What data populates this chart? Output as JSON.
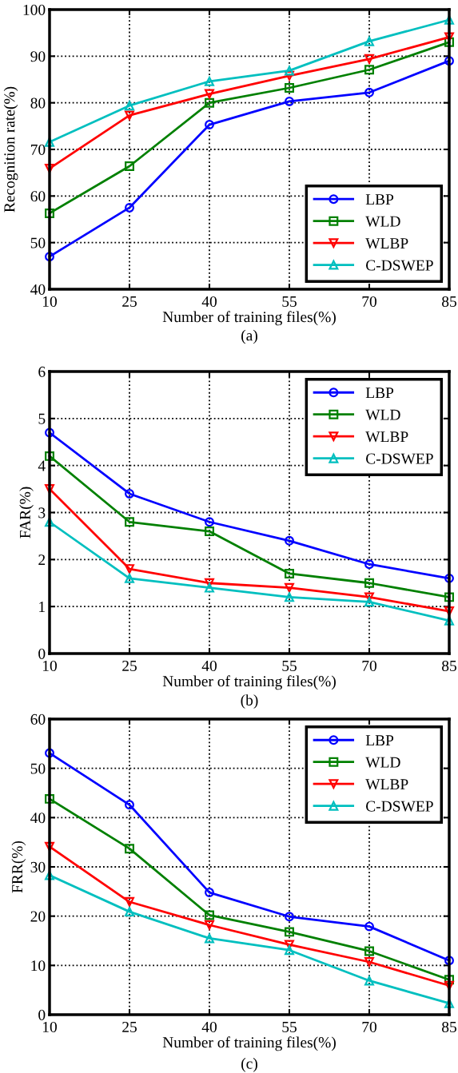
{
  "chart_data": [
    {
      "type": "line",
      "xlabel": "Number of training files(%)",
      "ylabel": "Recognition rate(%)",
      "annotations": [
        "(a)"
      ],
      "x": [
        10,
        25,
        40,
        55,
        70,
        85
      ],
      "xlim": [
        10,
        85
      ],
      "xticks": [
        10,
        25,
        40,
        55,
        70,
        85
      ],
      "ylim": [
        40,
        100
      ],
      "yticks": [
        40,
        50,
        60,
        70,
        80,
        90,
        100
      ],
      "grid": true,
      "legend": "bottom right",
      "line_style": "solid",
      "series": [
        {
          "name": "LBP",
          "color": "#0000ff",
          "marker": "circle",
          "values": [
            47,
            57.5,
            75.3,
            80.3,
            82.2,
            89
          ]
        },
        {
          "name": "WLD",
          "color": "#008000",
          "marker": "square",
          "values": [
            56.3,
            66.4,
            80,
            83.2,
            87.1,
            93
          ]
        },
        {
          "name": "WLBP",
          "color": "#ff0000",
          "marker": "triangle_down",
          "values": [
            65.9,
            77.3,
            81.9,
            85.8,
            89.4,
            94.1
          ]
        },
        {
          "name": "C-DSWEP",
          "color": "#00bfbf",
          "marker": "triangle",
          "values": [
            71.6,
            79.4,
            84.6,
            86.9,
            93.2,
            97.8
          ]
        }
      ]
    },
    {
      "type": "line",
      "xlabel": "Number of training files(%)",
      "ylabel": "FAR(%)",
      "annotations": [
        "(b)"
      ],
      "x": [
        10,
        25,
        40,
        55,
        70,
        85
      ],
      "xlim": [
        10,
        85
      ],
      "xticks": [
        10,
        25,
        40,
        55,
        70,
        85
      ],
      "ylim": [
        0,
        6
      ],
      "yticks": [
        0,
        1,
        2,
        3,
        4,
        5,
        6
      ],
      "grid": true,
      "legend": "top right",
      "line_style": "solid",
      "series": [
        {
          "name": "LBP",
          "color": "#0000ff",
          "marker": "circle",
          "values": [
            4.7,
            3.4,
            2.8,
            2.4,
            1.9,
            1.6
          ]
        },
        {
          "name": "WLD",
          "color": "#008000",
          "marker": "square",
          "values": [
            4.2,
            2.8,
            2.6,
            1.7,
            1.5,
            1.2
          ]
        },
        {
          "name": "WLBP",
          "color": "#ff0000",
          "marker": "triangle_down",
          "values": [
            3.5,
            1.8,
            1.5,
            1.4,
            1.2,
            0.9
          ]
        },
        {
          "name": "C-DSWEP",
          "color": "#00bfbf",
          "marker": "triangle",
          "values": [
            2.8,
            1.6,
            1.4,
            1.2,
            1.1,
            0.7
          ]
        }
      ]
    },
    {
      "type": "line",
      "xlabel": "Number of training files(%)",
      "ylabel": "FRR(%)",
      "annotations": [
        "(c)"
      ],
      "x": [
        10,
        25,
        40,
        55,
        70,
        85
      ],
      "xlim": [
        10,
        85
      ],
      "xticks": [
        10,
        25,
        40,
        55,
        70,
        85
      ],
      "ylim": [
        0,
        60
      ],
      "yticks": [
        0,
        10,
        20,
        30,
        40,
        50,
        60
      ],
      "grid": true,
      "legend": "top right",
      "line_style": "solid",
      "series": [
        {
          "name": "LBP",
          "color": "#0000ff",
          "marker": "circle",
          "values": [
            53.1,
            42.6,
            24.8,
            19.9,
            17.9,
            11
          ]
        },
        {
          "name": "WLD",
          "color": "#008000",
          "marker": "square",
          "values": [
            43.8,
            33.7,
            20.2,
            16.8,
            12.9,
            7.1
          ]
        },
        {
          "name": "WLBP",
          "color": "#ff0000",
          "marker": "triangle_down",
          "values": [
            34.1,
            22.9,
            18.2,
            14.2,
            10.7,
            5.9
          ]
        },
        {
          "name": "C-DSWEP",
          "color": "#00bfbf",
          "marker": "triangle",
          "values": [
            28.3,
            20.9,
            15.5,
            13.1,
            6.9,
            2.3
          ]
        }
      ]
    }
  ]
}
